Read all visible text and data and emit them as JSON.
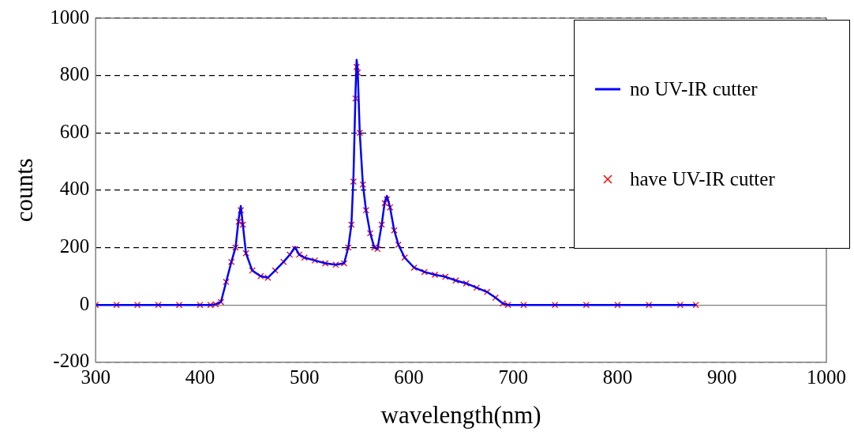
{
  "chart_data": {
    "type": "line",
    "xlabel": "wavelength(nm)",
    "ylabel": "counts",
    "xlim": [
      300,
      1000
    ],
    "xticks": [
      300,
      400,
      500,
      600,
      700,
      800,
      900,
      1000
    ],
    "ylim": [
      -200,
      1000
    ],
    "yticks": [
      -200,
      0,
      200,
      400,
      600,
      800,
      1000
    ],
    "grid": "y",
    "legend": "top right",
    "x": [
      300,
      320,
      340,
      360,
      380,
      400,
      410,
      415,
      420,
      425,
      430,
      434,
      437,
      439,
      441,
      444,
      450,
      458,
      465,
      472,
      480,
      486,
      491,
      495,
      500,
      510,
      520,
      530,
      538,
      542,
      545,
      547,
      549,
      550,
      551,
      553,
      556,
      559,
      563,
      567,
      570,
      574,
      577,
      579,
      582,
      586,
      590,
      596,
      605,
      615,
      625,
      635,
      645,
      655,
      665,
      675,
      683,
      690,
      695,
      710,
      740,
      770,
      800,
      830,
      860,
      875
    ],
    "series": [
      {
        "name": "no UV-IR cutter",
        "color": "#0000ff",
        "marker": "none",
        "values": [
          0,
          0,
          0,
          0,
          0,
          0,
          0,
          2,
          10,
          80,
          150,
          200,
          300,
          345,
          280,
          180,
          120,
          100,
          95,
          120,
          150,
          175,
          202,
          175,
          165,
          155,
          145,
          140,
          145,
          200,
          280,
          450,
          750,
          855,
          820,
          600,
          420,
          330,
          250,
          200,
          195,
          280,
          360,
          380,
          340,
          260,
          210,
          165,
          130,
          115,
          105,
          98,
          85,
          75,
          60,
          45,
          25,
          5,
          0,
          0,
          0,
          0,
          0,
          0,
          0,
          0
        ]
      },
      {
        "name": "have UV-IR cutter",
        "type": "scatter",
        "color": "#ff0000",
        "marker": "cross",
        "values": [
          0,
          0,
          0,
          0,
          0,
          0,
          0,
          2,
          10,
          80,
          150,
          200,
          290,
          330,
          280,
          180,
          120,
          100,
          95,
          120,
          150,
          175,
          195,
          175,
          165,
          155,
          145,
          140,
          145,
          200,
          280,
          430,
          720,
          830,
          810,
          600,
          420,
          330,
          250,
          200,
          195,
          280,
          355,
          368,
          340,
          260,
          210,
          165,
          130,
          115,
          105,
          98,
          85,
          75,
          60,
          45,
          25,
          5,
          0,
          0,
          0,
          0,
          0,
          0,
          0,
          0
        ]
      }
    ]
  }
}
